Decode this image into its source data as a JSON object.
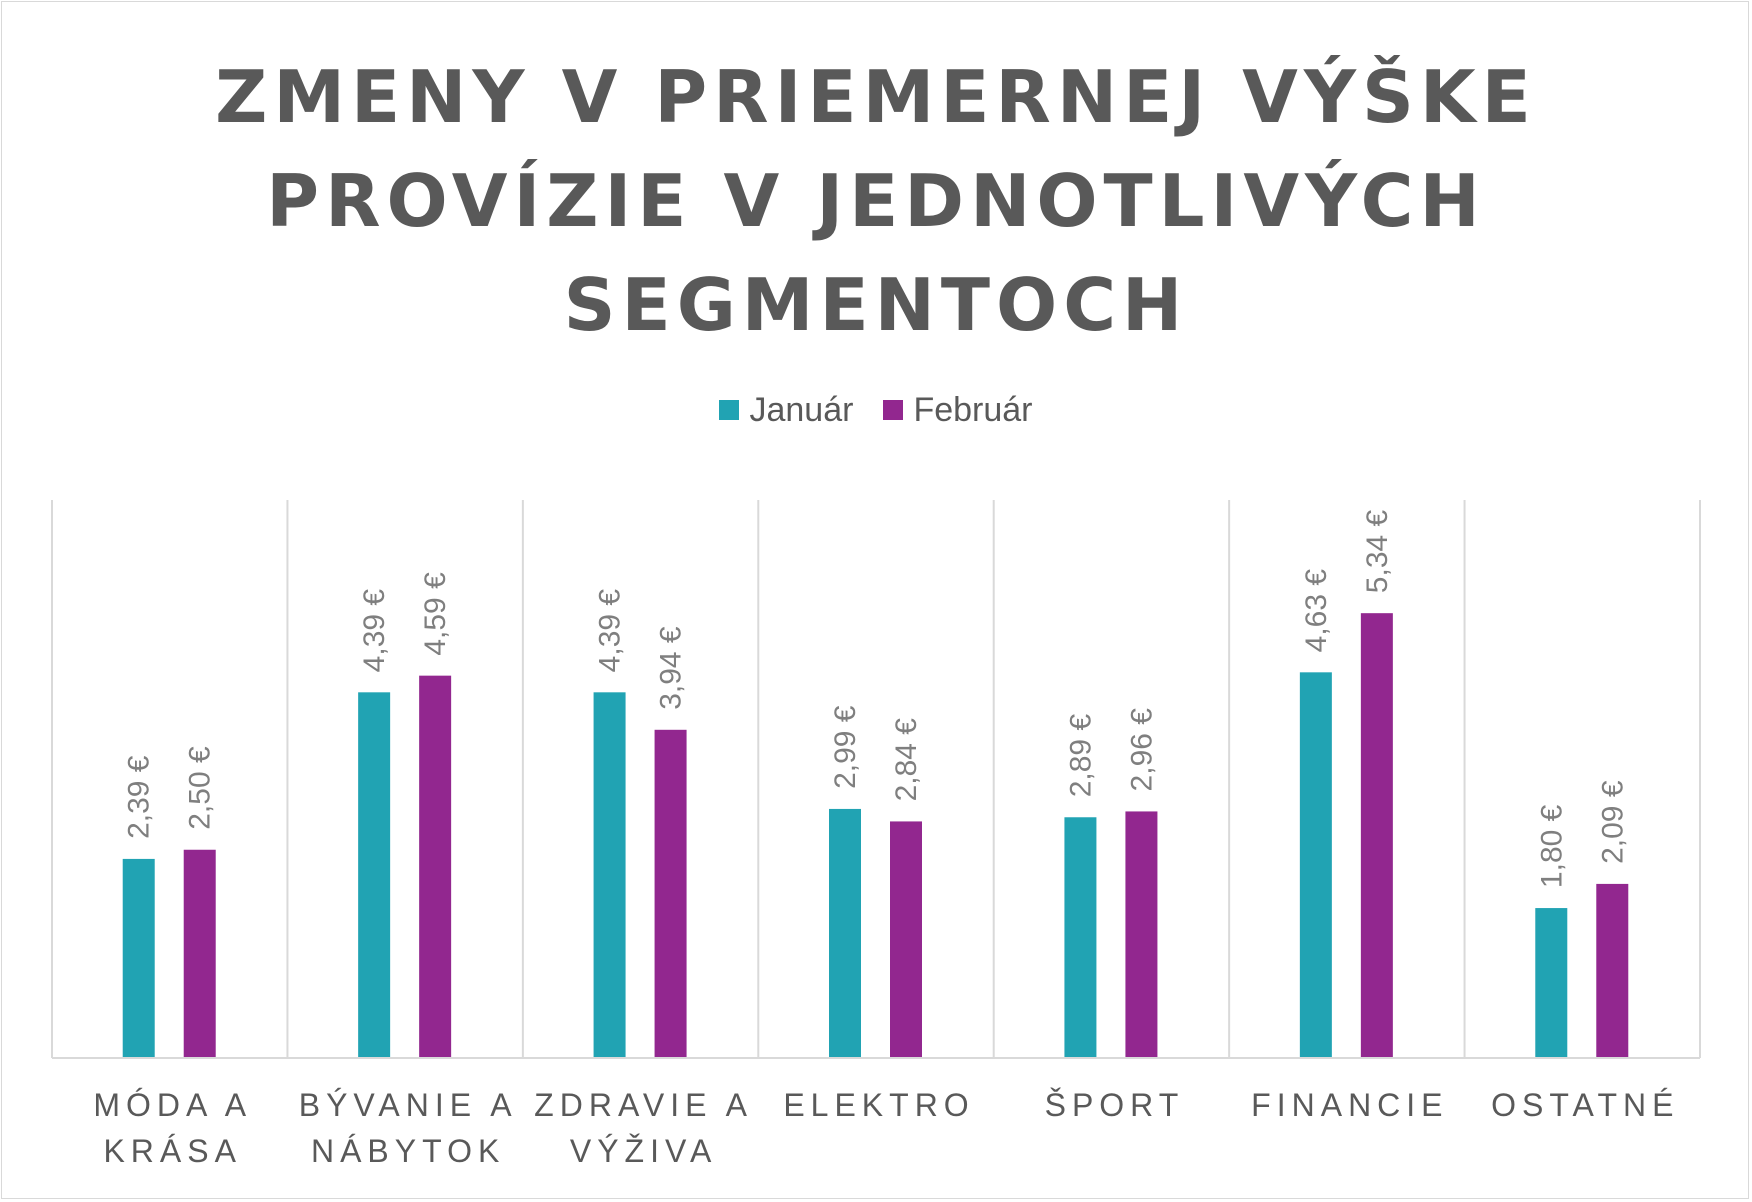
{
  "chart_data": {
    "type": "bar",
    "title_lines": [
      "ZMENY V PRIEMERNEJ VÝŠKE",
      "PROVÍZIE V JEDNOTLIVÝCH",
      "SEGMENTOCH"
    ],
    "categories": [
      "MÓDA A KRÁSA",
      "BÝVANIE A NÁBYTOK",
      "ZDRAVIE A VÝŽIVA",
      "ELEKTRO",
      "ŠPORT",
      "FINANCIE",
      "OSTATNÉ"
    ],
    "category_label_lines": [
      [
        "MÓDA A",
        "KRÁSA"
      ],
      [
        "BÝVANIE A",
        "NÁBYTOK"
      ],
      [
        "ZDRAVIE A",
        "VÝŽIVA"
      ],
      [
        "ELEKTRO"
      ],
      [
        "ŠPORT"
      ],
      [
        "FINANCIE"
      ],
      [
        "OSTATNÉ"
      ]
    ],
    "series": [
      {
        "name": "Január",
        "color": "#21A3B3",
        "values": [
          2.39,
          4.39,
          4.39,
          2.99,
          2.89,
          4.63,
          1.8
        ],
        "labels": [
          "2,39 €",
          "4,39 €",
          "4,39 €",
          "2,99 €",
          "2,89 €",
          "4,63 €",
          "1,80 €"
        ]
      },
      {
        "name": "Február",
        "color": "#92278F",
        "values": [
          2.5,
          4.59,
          3.94,
          2.84,
          2.96,
          5.34,
          2.09
        ],
        "labels": [
          "2,50 €",
          "4,59 €",
          "3,94 €",
          "2,84 €",
          "2,96 €",
          "5,34 €",
          "2,09 €"
        ]
      }
    ],
    "ylim": [
      0,
      6
    ],
    "legend_position": "top",
    "grid": "vertical category separators"
  }
}
